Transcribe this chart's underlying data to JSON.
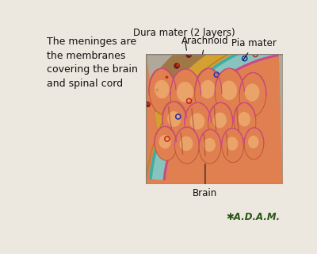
{
  "bg_color": "#ede8df",
  "title_text": "The meninges are\nthe membranes\ncovering the brain\nand spinal cord",
  "labels": {
    "dura_mater": "Dura mater (2 layers)",
    "arachnoid": "Arachnoid",
    "pia_mater": "Pia mater",
    "brain": "Brain"
  },
  "colors": {
    "bone_outer": "#a07040",
    "bone_mid": "#c8a060",
    "dura": "#d4a040",
    "arachnoid_color": "#40b0a8",
    "subarachnoid": "#90c8c0",
    "pia_color": "#cc5090",
    "brain_dark": "#d06838",
    "brain_mid": "#e08050",
    "brain_light": "#f0b878",
    "brain_sulcus": "#c05828",
    "zoom_bg_right": "#b0a898",
    "triangle_color": "#c8c4bc",
    "vessel_red": "#cc2020",
    "vessel_blue": "#2030aa"
  }
}
